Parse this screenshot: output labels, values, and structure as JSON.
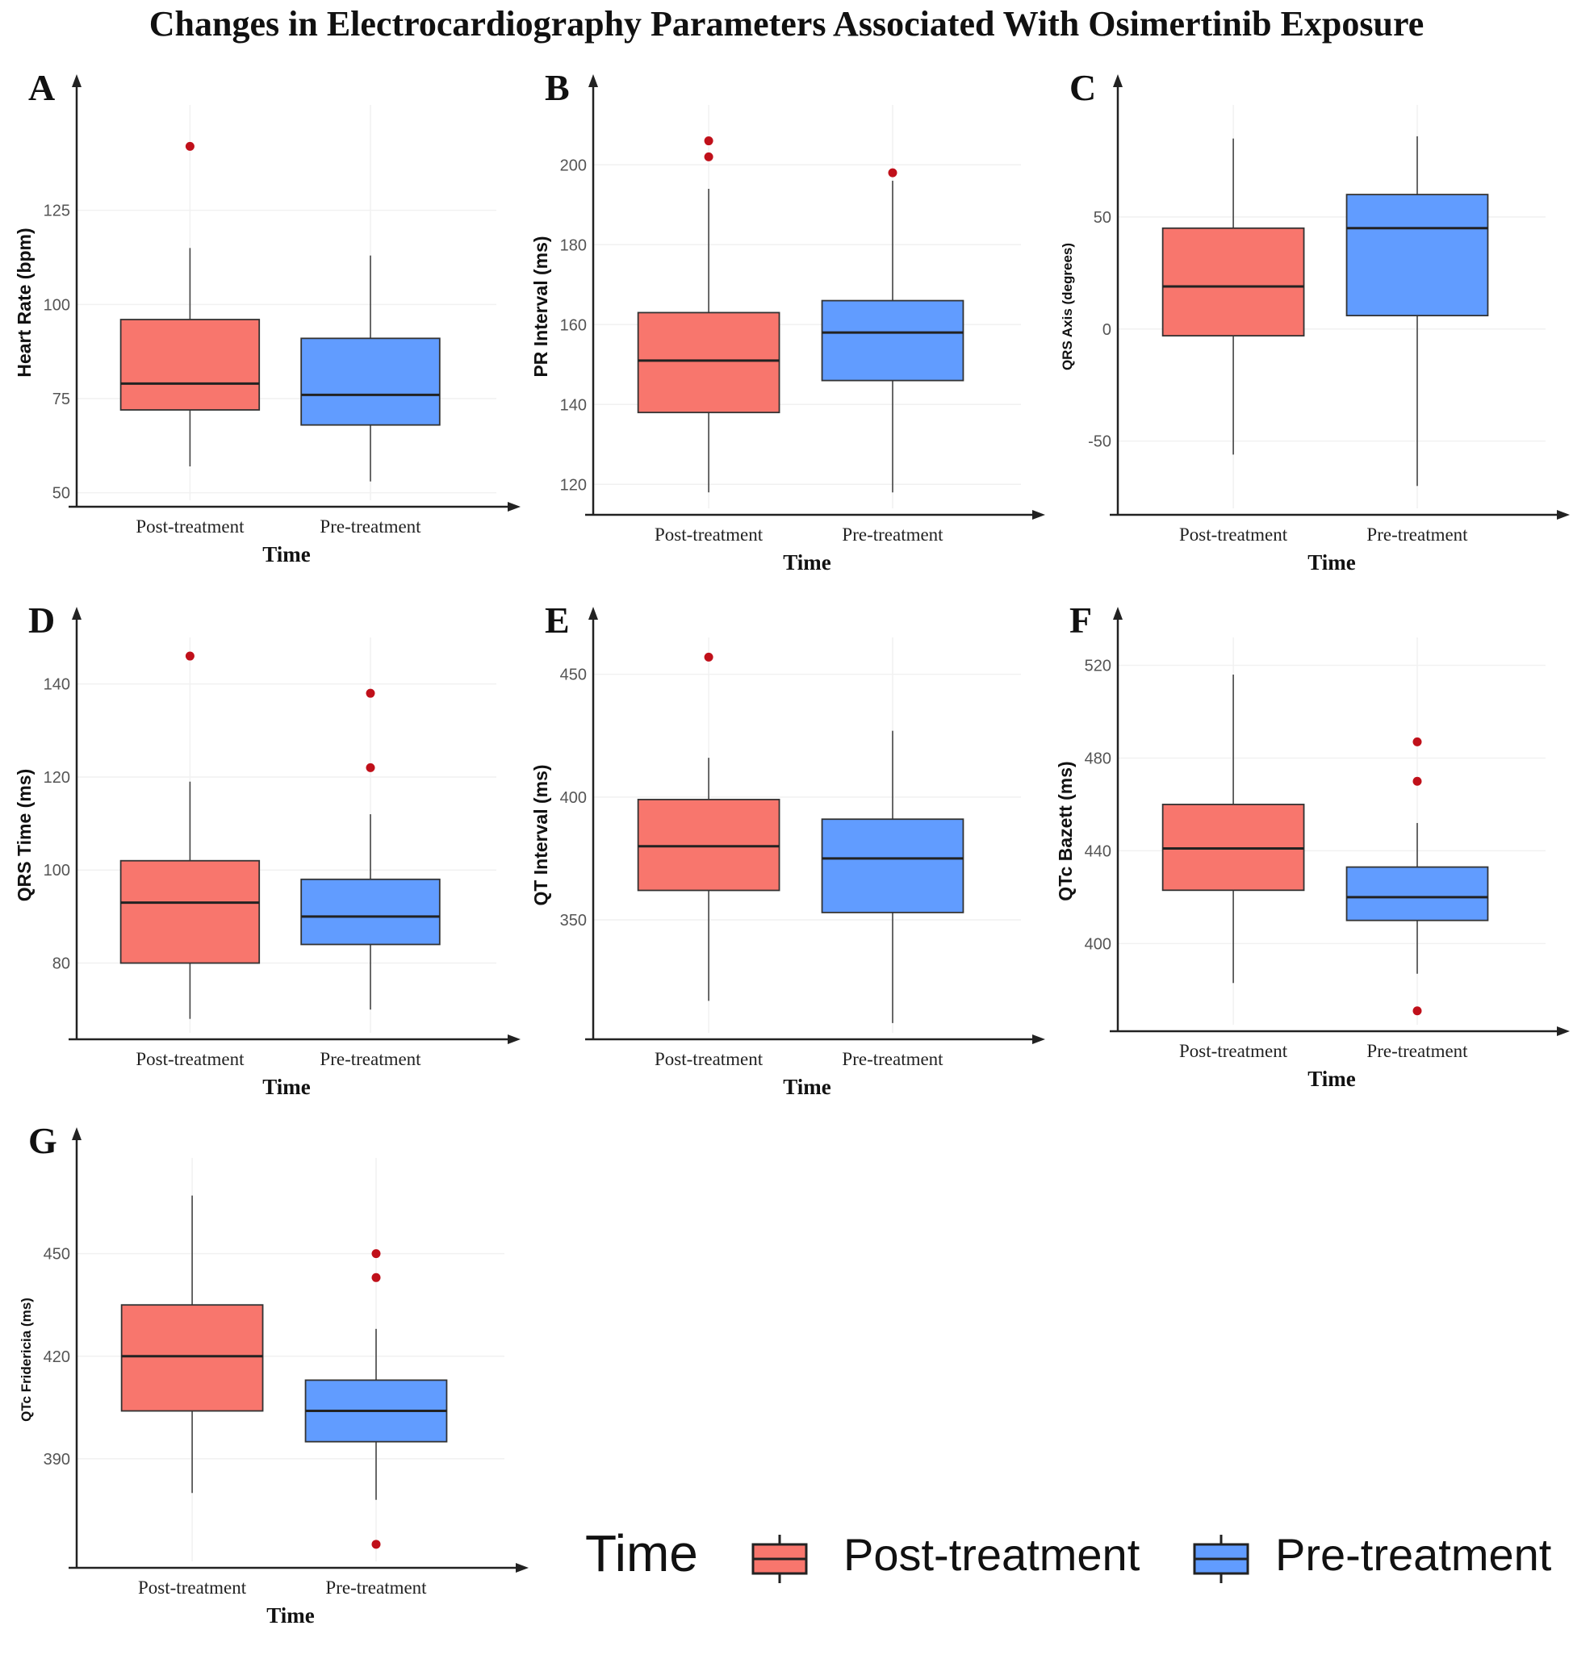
{
  "figure_title": "Changes in Electrocardiography Parameters Associated With Osimertinib Exposure",
  "colors": {
    "post": "#F8766D",
    "pre": "#619CFF",
    "outlier": "#C0101A",
    "axis": "#222222"
  },
  "legend": {
    "title": "Time",
    "items": [
      "Post-treatment",
      "Pre-treatment"
    ]
  },
  "chart_data": [
    {
      "panel": "A",
      "type": "box",
      "title": "",
      "xlabel": "Time",
      "ylabel": "Heart Rate (bpm)",
      "categories": [
        "Post-treatment",
        "Pre-treatment"
      ],
      "ylim": [
        48,
        153
      ],
      "ticks": [
        50,
        75,
        100,
        125
      ],
      "series": [
        {
          "name": "Post-treatment",
          "whisker_low": 57,
          "q1": 72,
          "median": 79,
          "q3": 96,
          "whisker_high": 115,
          "outliers": [
            142
          ]
        },
        {
          "name": "Pre-treatment",
          "whisker_low": 53,
          "q1": 68,
          "median": 76,
          "q3": 91,
          "whisker_high": 113,
          "outliers": []
        }
      ]
    },
    {
      "panel": "B",
      "type": "box",
      "title": "",
      "xlabel": "Time",
      "ylabel": "PR Interval (ms)",
      "categories": [
        "Post-treatment",
        "Pre-treatment"
      ],
      "ylim": [
        114,
        215
      ],
      "ticks": [
        120,
        140,
        160,
        180,
        200
      ],
      "series": [
        {
          "name": "Post-treatment",
          "whisker_low": 118,
          "q1": 138,
          "median": 151,
          "q3": 163,
          "whisker_high": 194,
          "outliers": [
            202,
            206
          ]
        },
        {
          "name": "Pre-treatment",
          "whisker_low": 118,
          "q1": 146,
          "median": 158,
          "q3": 166,
          "whisker_high": 196,
          "outliers": [
            198
          ]
        }
      ]
    },
    {
      "panel": "C",
      "type": "box",
      "title": "",
      "xlabel": "Time",
      "ylabel": "QRS Axis (degrees)",
      "categories": [
        "Post-treatment",
        "Pre-treatment"
      ],
      "ylim": [
        -80,
        100
      ],
      "ticks": [
        -50,
        0,
        50
      ],
      "series": [
        {
          "name": "Post-treatment",
          "whisker_low": -56,
          "q1": -3,
          "median": 19,
          "q3": 45,
          "whisker_high": 85,
          "outliers": []
        },
        {
          "name": "Pre-treatment",
          "whisker_low": -70,
          "q1": 6,
          "median": 45,
          "q3": 60,
          "whisker_high": 86,
          "outliers": []
        }
      ]
    },
    {
      "panel": "D",
      "type": "box",
      "title": "",
      "xlabel": "Time",
      "ylabel": "QRS Time (ms)",
      "categories": [
        "Post-treatment",
        "Pre-treatment"
      ],
      "ylim": [
        65,
        150
      ],
      "ticks": [
        80,
        100,
        120,
        140
      ],
      "series": [
        {
          "name": "Post-treatment",
          "whisker_low": 68,
          "q1": 80,
          "median": 93,
          "q3": 102,
          "whisker_high": 119,
          "outliers": [
            146
          ]
        },
        {
          "name": "Pre-treatment",
          "whisker_low": 70,
          "q1": 84,
          "median": 90,
          "q3": 98,
          "whisker_high": 112,
          "outliers": [
            122,
            138
          ]
        }
      ]
    },
    {
      "panel": "E",
      "type": "box",
      "title": "",
      "xlabel": "Time",
      "ylabel": "QT Interval (ms)",
      "categories": [
        "Post-treatment",
        "Pre-treatment"
      ],
      "ylim": [
        304,
        465
      ],
      "ticks": [
        350,
        400,
        450
      ],
      "series": [
        {
          "name": "Post-treatment",
          "whisker_low": 317,
          "q1": 362,
          "median": 380,
          "q3": 399,
          "whisker_high": 416,
          "outliers": [
            457
          ]
        },
        {
          "name": "Pre-treatment",
          "whisker_low": 308,
          "q1": 353,
          "median": 375,
          "q3": 391,
          "whisker_high": 427,
          "outliers": []
        }
      ]
    },
    {
      "panel": "F",
      "type": "box",
      "title": "",
      "xlabel": "Time",
      "ylabel": "QTc Bazett (ms)",
      "categories": [
        "Post-treatment",
        "Pre-treatment"
      ],
      "ylim": [
        365,
        532
      ],
      "ticks": [
        400,
        440,
        480,
        520
      ],
      "series": [
        {
          "name": "Post-treatment",
          "whisker_low": 383,
          "q1": 423,
          "median": 441,
          "q3": 460,
          "whisker_high": 516,
          "outliers": []
        },
        {
          "name": "Pre-treatment",
          "whisker_low": 387,
          "q1": 410,
          "median": 420,
          "q3": 433,
          "whisker_high": 452,
          "outliers": [
            371,
            470,
            487
          ]
        }
      ]
    },
    {
      "panel": "G",
      "type": "box",
      "title": "",
      "xlabel": "Time",
      "ylabel": "QTc Fridericia (ms)",
      "categories": [
        "Post-treatment",
        "Pre-treatment"
      ],
      "ylim": [
        360,
        478
      ],
      "ticks": [
        390,
        420,
        450
      ],
      "series": [
        {
          "name": "Post-treatment",
          "whisker_low": 380,
          "q1": 404,
          "median": 420,
          "q3": 435,
          "whisker_high": 467,
          "outliers": []
        },
        {
          "name": "Pre-treatment",
          "whisker_low": 378,
          "q1": 395,
          "median": 404,
          "q3": 413,
          "whisker_high": 428,
          "outliers": [
            365,
            443,
            450
          ]
        }
      ]
    }
  ]
}
